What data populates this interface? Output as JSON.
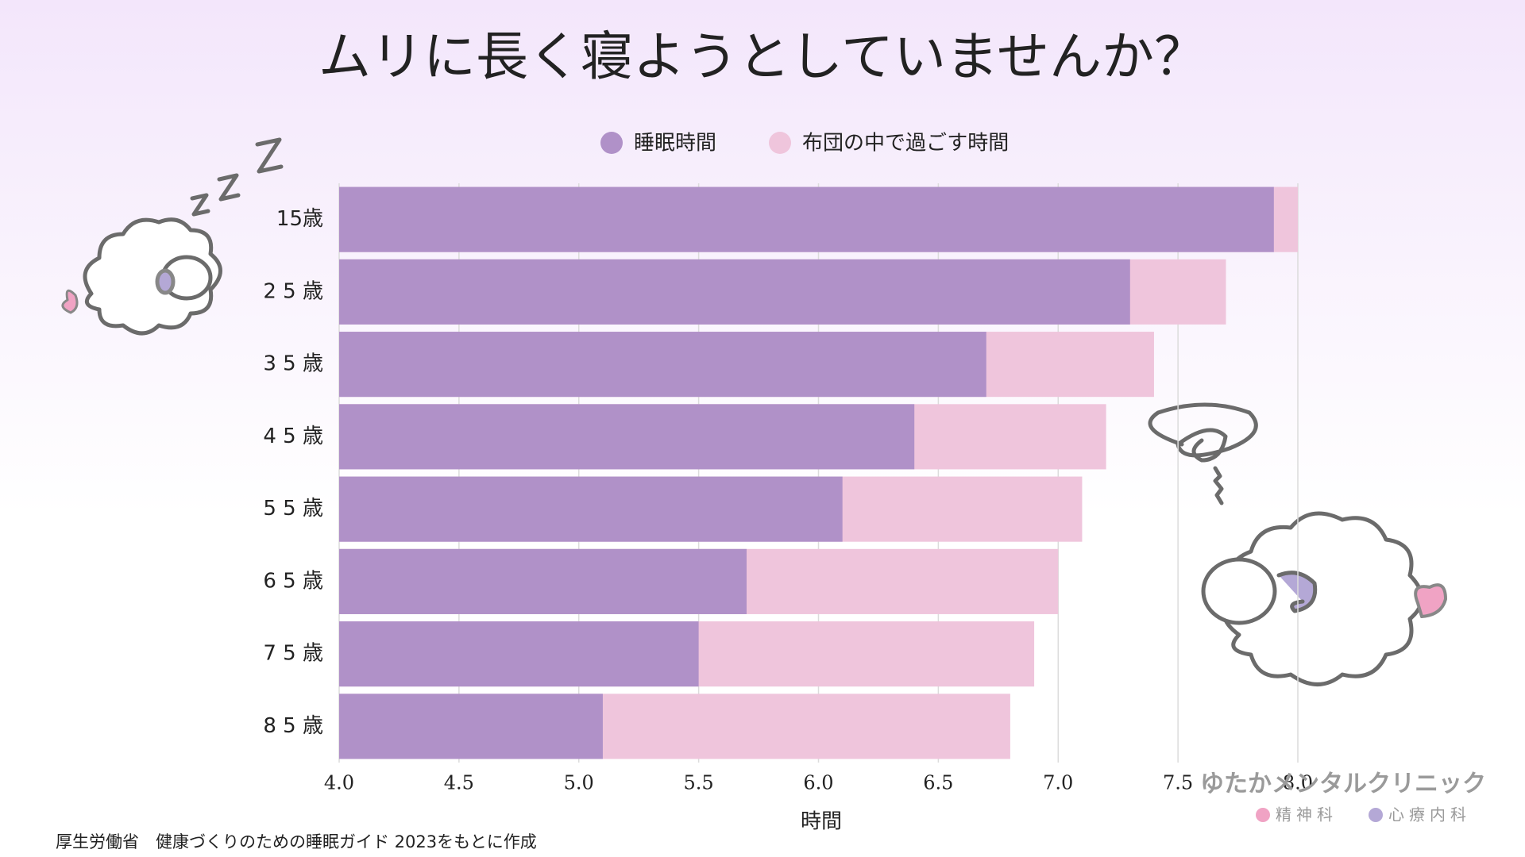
{
  "chart_data": {
    "type": "bar",
    "orientation": "horizontal",
    "overlap": true,
    "title": "ムリに長く寝ようとしていませんか？",
    "categories": [
      "15歳",
      "2 5 歳",
      "3 5 歳",
      "4 5 歳",
      "5 5 歳",
      "6 5 歳",
      "7 5 歳",
      "8 5 歳"
    ],
    "series": [
      {
        "name": "睡眠時間",
        "color": "#b091c8",
        "values": [
          7.9,
          7.3,
          6.7,
          6.4,
          6.1,
          5.7,
          5.5,
          5.1
        ]
      },
      {
        "name": "布団の中で過ごす時間",
        "color": "#efc5dc",
        "values": [
          8.0,
          7.7,
          7.4,
          7.2,
          7.1,
          7.0,
          6.9,
          6.8
        ]
      }
    ],
    "xlabel": "時間",
    "xlim": [
      4,
      8
    ],
    "xticks": [
      {
        "value": 4,
        "label": "4.0"
      },
      4.5,
      {
        "value": 5,
        "label": "5.0"
      },
      5.5,
      {
        "value": 6,
        "label": "6.0"
      },
      6.5,
      {
        "value": 7,
        "label": "7.0"
      },
      7.5,
      {
        "value": 8,
        "label": "8.0"
      }
    ],
    "grid": true,
    "legend": "top",
    "source": "厚生労働省　健康づくりのための睡眠ガイド 2023をもとに作成"
  },
  "logo": {
    "name": "ゆたかメンタルクリニック",
    "departments": [
      "精神科",
      "心療内科"
    ]
  }
}
